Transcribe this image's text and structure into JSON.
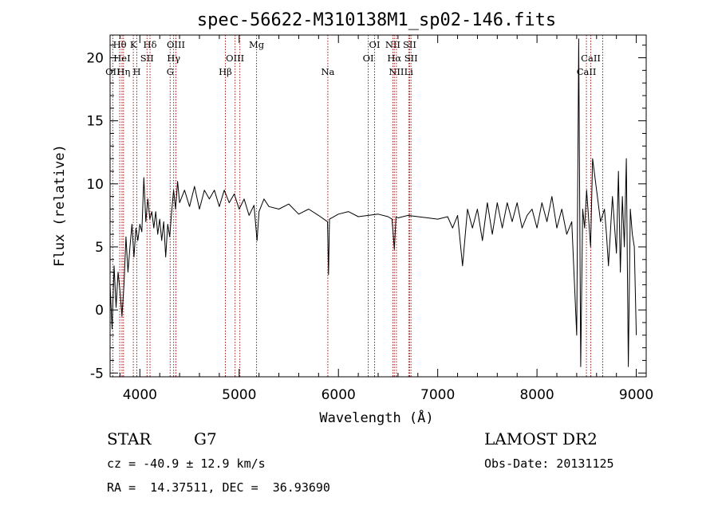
{
  "chart_data": {
    "type": "line",
    "title": "spec-56622-M310138M1_sp02-146.fits",
    "xlabel": "Wavelength (Å)",
    "ylabel": "Flux (relative)",
    "xlim": [
      3700,
      9100
    ],
    "ylim": [
      -5.3,
      21.8
    ],
    "xticks": [
      4000,
      5000,
      6000,
      7000,
      8000,
      9000
    ],
    "yticks": [
      -5,
      0,
      5,
      10,
      15,
      20
    ],
    "grid": false,
    "line_color": "#000000",
    "marker_color": "#a01818",
    "series": [
      {
        "x": [
          3700,
          3720,
          3740,
          3760,
          3780,
          3800,
          3820,
          3840,
          3860,
          3880,
          3900,
          3920,
          3940,
          3960,
          3980,
          4000,
          4020,
          4040,
          4060,
          4080,
          4100,
          4120,
          4140,
          4160,
          4180,
          4200,
          4220,
          4240,
          4260,
          4280,
          4300,
          4320,
          4340,
          4360,
          4380,
          4400,
          4450,
          4500,
          4550,
          4600,
          4650,
          4700,
          4750,
          4800,
          4850,
          4900,
          4950,
          5000,
          5050,
          5100,
          5150,
          5180,
          5200,
          5250,
          5300,
          5400,
          5500,
          5600,
          5700,
          5800,
          5890,
          5900,
          5910,
          6000,
          6100,
          6200,
          6300,
          6400,
          6500,
          6540,
          6563,
          6580,
          6600,
          6700,
          6800,
          6900,
          7000,
          7100,
          7150,
          7200,
          7250,
          7300,
          7350,
          7400,
          7450,
          7500,
          7550,
          7600,
          7650,
          7700,
          7750,
          7800,
          7850,
          7900,
          7950,
          8000,
          8050,
          8100,
          8150,
          8200,
          8250,
          8300,
          8350,
          8400,
          8420,
          8440,
          8460,
          8480,
          8500,
          8540,
          8560,
          8600,
          8640,
          8680,
          8700,
          8720,
          8760,
          8800,
          8820,
          8840,
          8860,
          8880,
          8900,
          8920,
          8940,
          8960,
          8980,
          9000
        ],
        "y": [
          2.0,
          -1.5,
          3.5,
          0.2,
          3.0,
          1.5,
          -0.5,
          2.0,
          5.8,
          3.0,
          5.0,
          6.8,
          4.2,
          6.5,
          5.5,
          6.8,
          6.2,
          10.5,
          7.0,
          8.8,
          7.2,
          7.8,
          6.5,
          7.8,
          6.0,
          7.2,
          5.5,
          7.0,
          4.2,
          6.8,
          5.8,
          7.8,
          9.5,
          8.0,
          10.2,
          8.5,
          9.5,
          8.2,
          9.8,
          8.0,
          9.5,
          8.8,
          9.5,
          8.2,
          9.5,
          8.5,
          9.2,
          8.0,
          8.8,
          7.5,
          8.3,
          5.5,
          7.8,
          8.8,
          8.2,
          8.0,
          8.4,
          7.6,
          8.0,
          7.5,
          7.0,
          2.8,
          7.2,
          7.6,
          7.8,
          7.4,
          7.5,
          7.6,
          7.4,
          7.2,
          4.8,
          7.4,
          7.3,
          7.5,
          7.4,
          7.3,
          7.2,
          7.4,
          6.5,
          7.5,
          3.5,
          8.0,
          6.5,
          8.0,
          5.5,
          8.5,
          6.0,
          8.5,
          6.5,
          8.5,
          7.0,
          8.5,
          6.5,
          7.5,
          8.0,
          6.5,
          8.5,
          7.0,
          9.0,
          6.5,
          8.0,
          6.0,
          7.0,
          -2.0,
          21.5,
          -4.5,
          8.0,
          6.5,
          9.5,
          5.0,
          12.0,
          9.5,
          7.0,
          8.0,
          6.0,
          3.5,
          9.0,
          4.5,
          11.0,
          3.0,
          9.0,
          5.0,
          12.0,
          -4.5,
          8.0,
          6.0,
          5.0,
          -2.0
        ],
        "values_note": ""
      }
    ],
    "spectral_lines": [
      {
        "label": "Hθ",
        "x": 3797,
        "row": 0
      },
      {
        "label": "OII",
        "x": 3727,
        "row": 2
      },
      {
        "label": "HeI",
        "x": 3820,
        "row": 1
      },
      {
        "label": "Hη",
        "x": 3835,
        "row": 2
      },
      {
        "label": "K",
        "x": 3934,
        "row": 0
      },
      {
        "label": "H",
        "x": 3969,
        "row": 2
      },
      {
        "label": "SII",
        "x": 4072,
        "row": 1
      },
      {
        "label": "Hδ",
        "x": 4102,
        "row": 0
      },
      {
        "label": "OIII",
        "x": 4363,
        "row": 0
      },
      {
        "label": "Hγ",
        "x": 4340,
        "row": 1
      },
      {
        "label": "G",
        "x": 4305,
        "row": 2
      },
      {
        "label": "Hβ",
        "x": 4861,
        "row": 2
      },
      {
        "label": "OIII",
        "x": 4959,
        "row": 1
      },
      {
        "label": "OIII",
        "x": 5007,
        "row": -1
      },
      {
        "label": "Mg",
        "x": 5175,
        "row": 0
      },
      {
        "label": "Na",
        "x": 5893,
        "row": 2
      },
      {
        "label": "OI",
        "x": 6300,
        "row": 1
      },
      {
        "label": "OI",
        "x": 6364,
        "row": 0
      },
      {
        "label": "NII",
        "x": 6548,
        "row": 0
      },
      {
        "label": "Hα",
        "x": 6563,
        "row": 1
      },
      {
        "label": "NII",
        "x": 6584,
        "row": 2
      },
      {
        "label": "SII",
        "x": 6717,
        "row": 0
      },
      {
        "label": "SII",
        "x": 6731,
        "row": 1
      },
      {
        "label": "Li",
        "x": 6708,
        "row": 2
      },
      {
        "label": "CaII",
        "x": 8498,
        "row": 2
      },
      {
        "label": "CaII",
        "x": 8542,
        "row": 1
      },
      {
        "label": "CaII",
        "x": 8662,
        "row": -1
      }
    ]
  },
  "info": {
    "object_class": "STAR",
    "subclass": "G7",
    "survey": "LAMOST DR2",
    "cz": "cz = -40.9 ± 12.9 km/s",
    "obs_date": "Obs-Date: 20131125",
    "coords": "RA =  14.37511, DEC =  36.93690"
  }
}
